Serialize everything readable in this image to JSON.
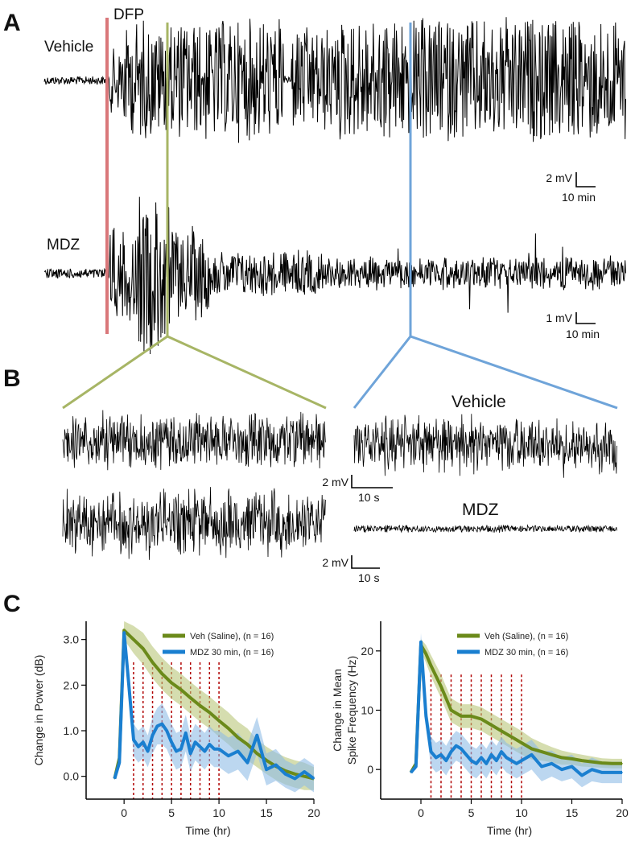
{
  "panels": {
    "a": "A",
    "b": "B",
    "c": "C"
  },
  "panel_a": {
    "marker_label": "DFP",
    "trace_top_label": "Vehicle",
    "trace_bottom_label": "MDZ",
    "scale_top": {
      "amp": "2 mV",
      "time": "10 min"
    },
    "scale_bottom": {
      "amp": "1 mV",
      "time": "10 min"
    }
  },
  "panel_b": {
    "right_top_label": "Vehicle",
    "right_bottom_label": "MDZ",
    "scale_1": {
      "amp": "2 mV",
      "time": "10 s"
    },
    "scale_2": {
      "amp": "2 mV",
      "time": "10 s"
    }
  },
  "colors": {
    "dfp_line": "#d9777a",
    "green_marker": "#a7b565",
    "blue_marker": "#6fa4d9",
    "veh_series": "#6b8a1a",
    "veh_band": "#b9c77a",
    "mdz_series": "#1a7fd0",
    "mdz_band": "#8fbde6",
    "dashed": "#b00000"
  },
  "chart_data": [
    {
      "type": "line",
      "title": "",
      "xlabel": "Time (hr)",
      "ylabel": "Change in Power (dB)",
      "xlim": [
        -4,
        20
      ],
      "ylim": [
        -0.5,
        3.4
      ],
      "xticks": [
        0,
        5,
        10,
        15,
        20
      ],
      "yticks": [
        0.0,
        1.0,
        2.0,
        3.0
      ],
      "ytick_labels": [
        "0.0",
        "1.0",
        "2.0",
        "3.0"
      ],
      "dashed_lines_x": [
        1,
        2,
        3,
        4,
        5,
        6,
        7,
        8,
        9,
        10
      ],
      "dashed_range_y": [
        -0.5,
        2.5
      ],
      "legend": [
        "Veh (Saline), (n = 16)",
        "MDZ 30 min, (n = 16)"
      ],
      "series": [
        {
          "name": "Veh (Saline), (n = 16)",
          "x": [
            -1,
            -0.5,
            0,
            1,
            2,
            3,
            4,
            5,
            6,
            7,
            8,
            9,
            10,
            11,
            12,
            13,
            14,
            15,
            16,
            17,
            18,
            19,
            20
          ],
          "values": [
            -0.05,
            0.4,
            3.2,
            3.0,
            2.8,
            2.5,
            2.25,
            2.05,
            1.9,
            1.72,
            1.55,
            1.4,
            1.22,
            1.05,
            0.85,
            0.7,
            0.5,
            0.35,
            0.22,
            0.12,
            0.05,
            0.0,
            -0.05
          ],
          "error": [
            0.0,
            0.15,
            0.2,
            0.3,
            0.35,
            0.35,
            0.35,
            0.35,
            0.35,
            0.35,
            0.35,
            0.35,
            0.35,
            0.35,
            0.35,
            0.35,
            0.3,
            0.3,
            0.3,
            0.3,
            0.3,
            0.3,
            0.25
          ]
        },
        {
          "name": "MDZ 30 min, (n = 16)",
          "x": [
            -1,
            -0.5,
            0,
            0.5,
            1,
            1.5,
            2,
            2.5,
            3,
            3.5,
            4,
            4.5,
            5,
            5.5,
            6,
            6.5,
            7,
            7.5,
            8,
            8.5,
            9,
            9.5,
            10,
            11,
            12,
            13,
            14,
            15,
            16,
            17,
            18,
            19,
            20
          ],
          "values": [
            -0.05,
            0.3,
            3.15,
            2.0,
            0.8,
            0.65,
            0.75,
            0.55,
            0.9,
            1.1,
            1.15,
            1.0,
            0.75,
            0.55,
            0.6,
            0.95,
            0.5,
            0.75,
            0.65,
            0.55,
            0.7,
            0.6,
            0.6,
            0.45,
            0.55,
            0.3,
            0.9,
            0.15,
            0.25,
            0.05,
            -0.05,
            0.1,
            -0.05
          ],
          "error": [
            0.0,
            0.1,
            0.1,
            0.3,
            0.35,
            0.35,
            0.35,
            0.35,
            0.4,
            0.4,
            0.45,
            0.4,
            0.4,
            0.4,
            0.4,
            0.4,
            0.4,
            0.4,
            0.4,
            0.4,
            0.4,
            0.4,
            0.4,
            0.4,
            0.4,
            0.4,
            0.4,
            0.35,
            0.35,
            0.3,
            0.3,
            0.3,
            0.3
          ]
        }
      ]
    },
    {
      "type": "line",
      "title": "",
      "xlabel": "Time (hr)",
      "ylabel": "Change in Mean Spike Frequency (Hz)",
      "ylabel_lines": [
        "Change in Mean",
        "Spike Frequency (Hz)"
      ],
      "xlim": [
        -4,
        20
      ],
      "ylim": [
        -5,
        25
      ],
      "xticks": [
        0,
        5,
        10,
        15,
        20
      ],
      "yticks": [
        0,
        10,
        20
      ],
      "ytick_labels": [
        "0",
        "10",
        "20"
      ],
      "dashed_lines_x": [
        1,
        2,
        3,
        4,
        5,
        6,
        7,
        8,
        9,
        10
      ],
      "dashed_range_y": [
        -5,
        16
      ],
      "legend": [
        "Veh (Saline), (n = 16)",
        "MDZ 30 min, (n = 16)"
      ],
      "series": [
        {
          "name": "Veh (Saline), (n = 16)",
          "x": [
            -1,
            -0.5,
            0,
            0.5,
            1,
            2,
            3,
            4,
            5,
            6,
            7,
            8,
            9,
            10,
            11,
            12,
            13,
            14,
            15,
            16,
            17,
            18,
            19,
            20
          ],
          "values": [
            -0.5,
            1.0,
            21.0,
            19.5,
            17.5,
            14.0,
            10.0,
            9.0,
            9.0,
            8.5,
            7.5,
            6.5,
            5.5,
            4.5,
            3.5,
            3.0,
            2.5,
            2.0,
            1.8,
            1.5,
            1.3,
            1.1,
            1.0,
            1.0
          ],
          "error": [
            0.0,
            0.5,
            1.0,
            1.5,
            1.8,
            2.0,
            2.0,
            2.0,
            2.0,
            2.0,
            2.0,
            2.0,
            2.0,
            2.0,
            1.8,
            1.5,
            1.3,
            1.2,
            1.0,
            1.0,
            0.9,
            0.8,
            0.8,
            0.8
          ]
        },
        {
          "name": "MDZ 30 min, (n = 16)",
          "x": [
            -1,
            -0.5,
            0,
            0.5,
            1,
            1.5,
            2,
            2.5,
            3,
            3.5,
            4,
            4.5,
            5,
            5.5,
            6,
            6.5,
            7,
            7.5,
            8,
            8.5,
            9,
            9.5,
            10,
            11,
            12,
            13,
            14,
            15,
            16,
            17,
            18,
            19,
            20
          ],
          "values": [
            -0.5,
            0.5,
            21.5,
            9.0,
            3.0,
            2.0,
            2.5,
            1.5,
            3.0,
            4.0,
            3.5,
            2.5,
            1.5,
            1.0,
            2.0,
            1.0,
            2.5,
            1.5,
            3.0,
            2.0,
            1.5,
            1.0,
            1.5,
            2.5,
            0.5,
            1.0,
            0.0,
            0.5,
            -1.0,
            0.0,
            -0.5,
            -0.5,
            -0.5
          ],
          "error": [
            0.0,
            0.5,
            1.5,
            2.0,
            2.5,
            2.5,
            2.5,
            2.5,
            2.5,
            2.5,
            2.5,
            2.5,
            2.5,
            2.5,
            2.5,
            2.5,
            2.5,
            2.5,
            2.5,
            2.5,
            2.5,
            2.5,
            2.5,
            2.5,
            2.5,
            2.2,
            2.0,
            2.0,
            2.0,
            2.0,
            1.8,
            1.8,
            1.8
          ]
        }
      ]
    }
  ]
}
